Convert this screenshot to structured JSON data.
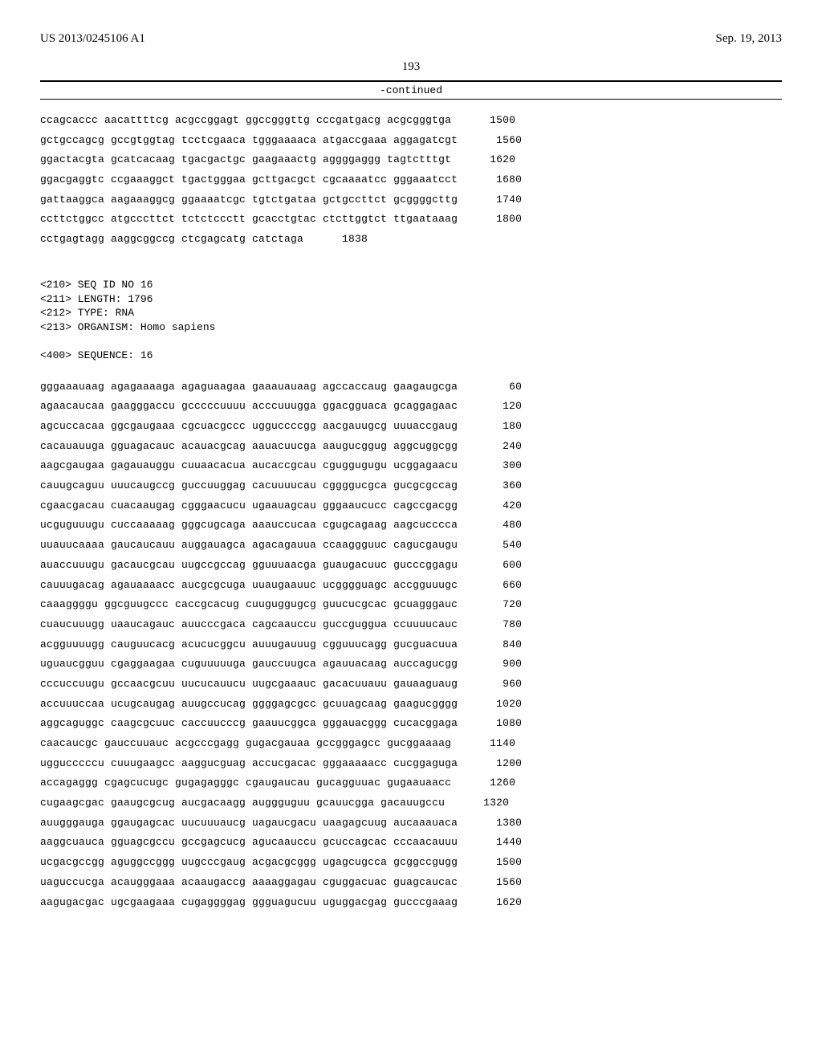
{
  "header": {
    "pub_number": "US 2013/0245106 A1",
    "pub_date": "Sep. 19, 2013"
  },
  "page_number": "193",
  "continued_label": "-continued",
  "top_sequence": {
    "lines": [
      {
        "text": "ccagcaccc aacattttcg acgccggagt ggccgggttg cccgatgacg acgcgggtga",
        "num": "1500"
      },
      {
        "text": "gctgccagcg gccgtggtag tcctcgaaca tgggaaaaca atgaccgaaa aggagatcgt",
        "num": "1560"
      },
      {
        "text": "ggactacgta gcatcacaag tgacgactgc gaagaaactg aggggaggg tagtctttgt",
        "num": "1620"
      },
      {
        "text": "ggacgaggtc ccgaaaggct tgactgggaa gcttgacgct cgcaaaatcc gggaaatcct",
        "num": "1680"
      },
      {
        "text": "gattaaggca aagaaaggcg ggaaaatcgc tgtctgataa gctgccttct gcggggcttg",
        "num": "1740"
      },
      {
        "text": "ccttctggcc atgcccttct tctctccctt gcacctgtac ctcttggtct ttgaataaag",
        "num": "1800"
      },
      {
        "text": "cctgagtagg aaggcggccg ctcgagcatg catctaga",
        "num": "1838"
      }
    ]
  },
  "meta": {
    "seq_id": "<210> SEQ ID NO 16",
    "length": "<211> LENGTH: 1796",
    "type": "<212> TYPE: RNA",
    "organism": "<213> ORGANISM: Homo sapiens",
    "sequence_label": "<400> SEQUENCE: 16"
  },
  "bottom_sequence": {
    "lines": [
      {
        "text": "gggaaauaag agagaaaaga agaguaagaa gaaauauaag agccaccaug gaagaugcga",
        "num": "60"
      },
      {
        "text": "agaacaucaa gaagggaccu gcccccuuuu acccuuugga ggacgguaca gcaggagaac",
        "num": "120"
      },
      {
        "text": "agcuccacaa ggcgaugaaa cgcuacgccc ugguccccgg aacgauugcg uuuaccgaug",
        "num": "180"
      },
      {
        "text": "cacauauuga gguagacauc acauacgcag aauacuucga aaugucggug aggcuggcgg",
        "num": "240"
      },
      {
        "text": "aagcgaugaa gagauauggu cuuaacacua aucaccgcau cguggugugu ucggagaacu",
        "num": "300"
      },
      {
        "text": "cauugcaguu uuucaugccg guccuuggag cacuuuucau cggggucgca gucgcgccag",
        "num": "360"
      },
      {
        "text": "cgaacgacau cuacaaugag cgggaacucu ugaauagcau gggaaucucc cagccgacgg",
        "num": "420"
      },
      {
        "text": "ucguguuugu cuccaaaaag gggcugcaga aaauccucaa cgugcagaag aagcucccca",
        "num": "480"
      },
      {
        "text": "uuauucaaaa gaucaucauu auggauagca agacagauua ccaaggguuc cagucgaugu",
        "num": "540"
      },
      {
        "text": "auaccuuugu gacaucgcau uugccgccag gguuuaacga guaugacuuc gucccggagu",
        "num": "600"
      },
      {
        "text": "cauuugacag agauaaaacc aucgcgcuga uuaugaauuc ucgggguagc accgguuugc",
        "num": "660"
      },
      {
        "text": "caaaggggu ggcguugccc caccgcacug cuuguggugcg guucucgcac gcuagggauc",
        "num": "720"
      },
      {
        "text": "cuaucuuugg uaaucagauc auucccgaca cagcaauccu guccguggua ccuuuucauc",
        "num": "780"
      },
      {
        "text": "acgguuuugg cauguucacg acucucggcu auuugauuug cgguuucagg gucguacuua",
        "num": "840"
      },
      {
        "text": "uguaucgguu cgaggaagaa cuguuuuuga gauccuugca agauuacaag auccagucgg",
        "num": "900"
      },
      {
        "text": "cccuccuugu gccaacgcuu uucucauucu uugcgaaauc gacacuuauu gauaaguaug",
        "num": "960"
      },
      {
        "text": "accuuuccaa ucugcaugag auugccucag ggggagcgcc gcuuagcaag gaagucgggg",
        "num": "1020"
      },
      {
        "text": "aggcaguggc caagcgcuuc caccuucccg gaauucggca gggauacggg cucacggaga",
        "num": "1080"
      },
      {
        "text": "caacaucgc gauccuuauc acgcccgagg gugacgauaa gccgggagcc gucggaaaag",
        "num": "1140"
      },
      {
        "text": "uggucccccu cuuugaagcc aaggucguag accucgacac gggaaaaacc cucggaguga",
        "num": "1200"
      },
      {
        "text": "accagaggg cgagcucugc gugagagggc cgaugaucau gucagguuac gugaauaacc",
        "num": "1260"
      },
      {
        "text": "cugaagcgac gaaugcgcug aucgacaagg auggguguu gcauucgga gacauugccu",
        "num": "1320"
      },
      {
        "text": "auugggauga ggaugagcac uucuuuaucg uagaucgacu uaagagcuug aucaaauaca",
        "num": "1380"
      },
      {
        "text": "aaggcuauca gguagcgccu gccgagcucg agucaauccu gcuccagcac cccaacauuu",
        "num": "1440"
      },
      {
        "text": "ucgacgccgg aguggccggg uugcccgaug acgacgcggg ugagcugcca gcggccgugg",
        "num": "1500"
      },
      {
        "text": "uaguccucga acaugggaaa acaaugaccg aaaaggagau cguggacuac guagcaucac",
        "num": "1560"
      },
      {
        "text": "aagugacgac ugcgaagaaa cugaggggag ggguagucuu uguggacgag gucccgaaag",
        "num": "1620"
      }
    ]
  }
}
